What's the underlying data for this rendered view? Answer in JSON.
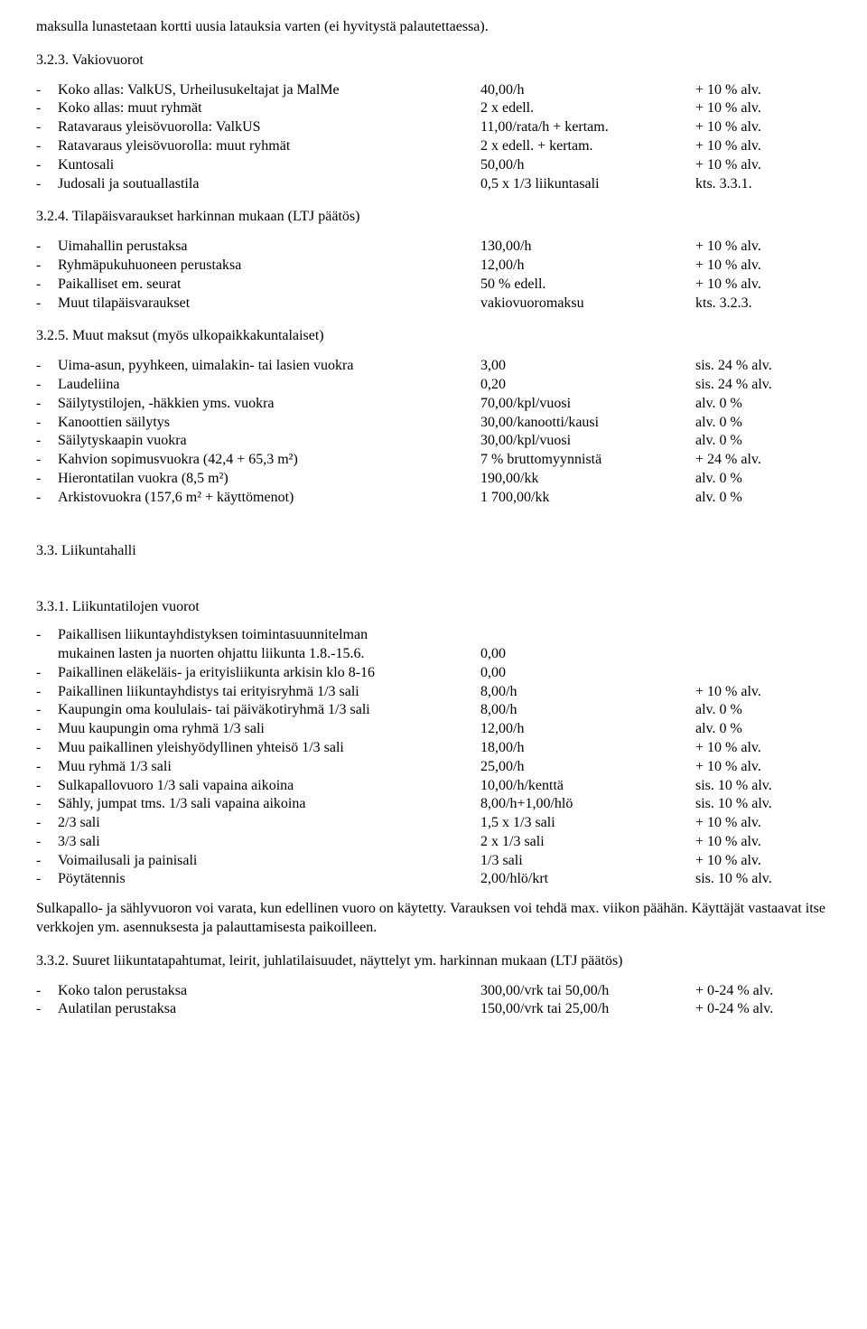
{
  "intro_line": "maksulla lunastetaan kortti uusia latauksia varten (ei hyvitystä palautettaessa).",
  "sections": {
    "s323": {
      "title": "3.2.3. Vakiovuorot",
      "rows": [
        {
          "label": "Koko allas: ValkUS, Urheilusukeltajat ja MalMe",
          "c2": "40,00/h",
          "c3": "+ 10 % alv."
        },
        {
          "label": "Koko allas: muut ryhmät",
          "c2": "2 x edell.",
          "c3": "+ 10 % alv."
        },
        {
          "label": "Ratavaraus yleisövuorolla: ValkUS",
          "c2": "11,00/rata/h + kertam.",
          "c3": "+ 10 % alv."
        },
        {
          "label": "Ratavaraus yleisövuorolla: muut ryhmät",
          "c2": "2 x edell. + kertam.",
          "c3": "+ 10 % alv."
        },
        {
          "label": "Kuntosali",
          "c2": "50,00/h",
          "c3": "+ 10 % alv."
        },
        {
          "label": "Judosali ja soutuallastila",
          "c2": "0,5 x 1/3 liikuntasali",
          "c3": "kts. 3.3.1."
        }
      ]
    },
    "s324": {
      "title": "3.2.4. Tilapäisvaraukset harkinnan mukaan (LTJ päätös)",
      "rows": [
        {
          "label": "Uimahallin perustaksa",
          "c2": "130,00/h",
          "c3": "+ 10 % alv."
        },
        {
          "label": "Ryhmäpukuhuoneen perustaksa",
          "c2": "12,00/h",
          "c3": "+ 10 % alv."
        },
        {
          "label": "Paikalliset em. seurat",
          "c2": "50 % edell.",
          "c3": "+ 10 % alv."
        },
        {
          "label": "Muut tilapäisvaraukset",
          "c2": "vakiovuoromaksu",
          "c3": "kts. 3.2.3."
        }
      ]
    },
    "s325": {
      "title": "3.2.5. Muut maksut (myös ulkopaikkakuntalaiset)",
      "rows": [
        {
          "label": "Uima-asun, pyyhkeen, uimalakin- tai lasien vuokra",
          "c2": "3,00",
          "c3": "sis. 24 % alv."
        },
        {
          "label": "Laudeliina",
          "c2": "0,20",
          "c3": "sis. 24 % alv."
        },
        {
          "label": "Säilytystilojen, -häkkien yms. vuokra",
          "c2": "70,00/kpl/vuosi",
          "c3": "alv. 0 %"
        },
        {
          "label": "Kanoottien säilytys",
          "c2": "30,00/kanootti/kausi",
          "c3": "alv. 0 %"
        },
        {
          "label": "Säilytyskaapin vuokra",
          "c2": "30,00/kpl/vuosi",
          "c3": "alv. 0 %"
        },
        {
          "label": "Kahvion sopimusvuokra (42,4 + 65,3 m²)",
          "c2": "7 % bruttomyynnistä",
          "c3": "+ 24 % alv."
        },
        {
          "label": "Hierontatilan vuokra (8,5 m²)",
          "c2": "190,00/kk",
          "c3": "alv. 0 %"
        },
        {
          "label": "Arkistovuokra (157,6 m² + käyttömenot)",
          "c2": "1 700,00/kk",
          "c3": "alv. 0 %"
        }
      ]
    },
    "s33": {
      "title": "3.3. Liikuntahalli"
    },
    "s331": {
      "title": "3.3.1. Liikuntatilojen vuorot",
      "intro_row1_label": "Paikallisen liikuntayhdistyksen toimintasuunnitelman",
      "intro_row2_label": "mukainen lasten ja nuorten ohjattu liikunta 1.8.-15.6.",
      "intro_row2_c2": "0,00",
      "rows": [
        {
          "label": "Paikallinen eläkeläis- ja erityisliikunta arkisin klo 8-16",
          "c2": "0,00",
          "c3": ""
        },
        {
          "label": "Paikallinen liikuntayhdistys tai erityisryhmä 1/3 sali",
          "c2": "8,00/h",
          "c3": "+ 10 % alv."
        },
        {
          "label": "Kaupungin oma koululais- tai päiväkotiryhmä 1/3 sali",
          "c2": "8,00/h",
          "c3": "alv. 0 %"
        },
        {
          "label": "Muu kaupungin oma ryhmä 1/3 sali",
          "c2": "12,00/h",
          "c3": "alv. 0 %"
        },
        {
          "label": "Muu paikallinen yleishyödyllinen yhteisö 1/3 sali",
          "c2": "18,00/h",
          "c3": "+ 10 % alv."
        },
        {
          "label": "Muu ryhmä 1/3 sali",
          "c2": "25,00/h",
          "c3": "+ 10 % alv."
        },
        {
          "label": "Sulkapallovuoro 1/3 sali vapaina aikoina",
          "c2": "10,00/h/kenttä",
          "c3": "sis. 10 % alv."
        },
        {
          "label": "Sähly, jumpat tms. 1/3 sali vapaina aikoina",
          "c2": "8,00/h+1,00/hlö",
          "c3": "sis. 10 % alv."
        },
        {
          "label": "2/3 sali",
          "c2": "1,5 x 1/3 sali",
          "c3": "+ 10 % alv."
        },
        {
          "label": "3/3 sali",
          "c2": "2 x 1/3 sali",
          "c3": "+ 10 % alv."
        },
        {
          "label": "Voimailusali ja painisali",
          "c2": "1/3 sali",
          "c3": "+ 10 % alv."
        },
        {
          "label": "Pöytätennis",
          "c2": "2,00/hlö/krt",
          "c3": "sis. 10 % alv."
        }
      ],
      "note": "Sulkapallo- ja sählyvuoron voi varata, kun edellinen vuoro on käytetty. Varauksen voi tehdä max. viikon päähän. Käyttäjät vastaavat itse verkkojen ym. asennuksesta ja palauttamisesta paikoilleen."
    },
    "s332": {
      "title": "3.3.2. Suuret liikuntatapahtumat, leirit, juhlatilaisuudet, näyttelyt ym. harkinnan mukaan (LTJ päätös)",
      "rows": [
        {
          "label": "Koko talon perustaksa",
          "c2": "300,00/vrk tai 50,00/h",
          "c3": "+ 0-24 % alv."
        },
        {
          "label": "Aulatilan perustaksa",
          "c2": "150,00/vrk tai 25,00/h",
          "c3": "+ 0-24 % alv."
        }
      ]
    }
  }
}
